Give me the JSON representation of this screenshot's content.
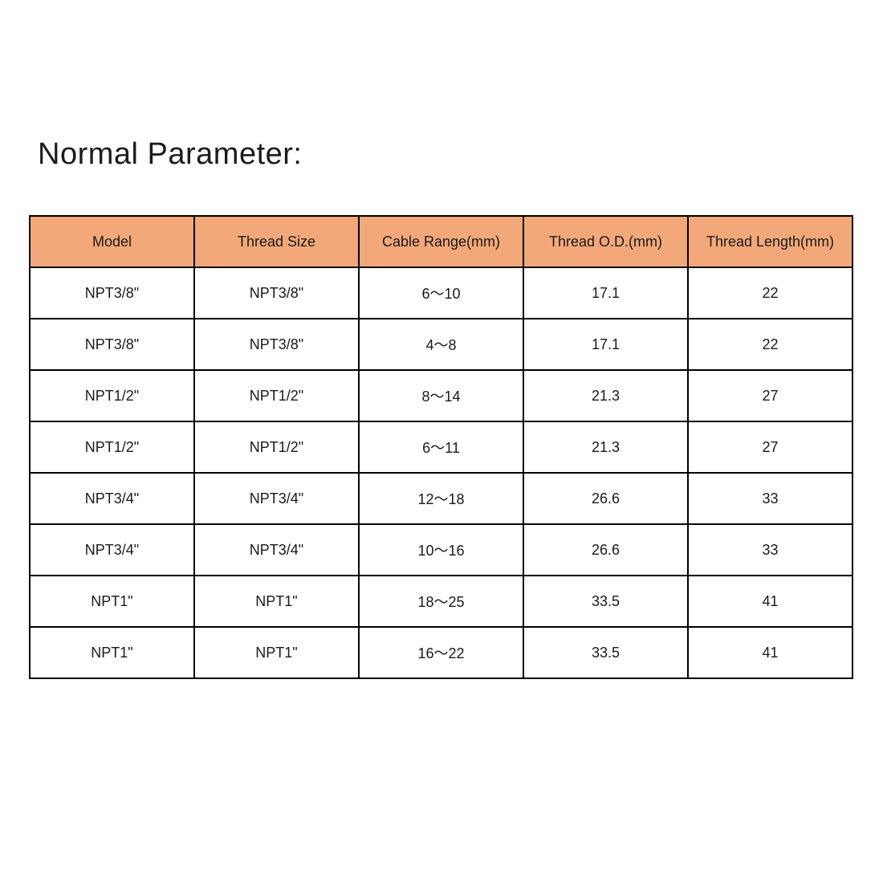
{
  "page": {
    "title": "Normal Parameter:"
  },
  "table": {
    "headers": [
      "Model",
      "Thread Size",
      "Cable Range(mm)",
      "Thread O.D.(mm)",
      "Thread Length(mm)"
    ],
    "rows": [
      [
        "NPT3/8\"",
        "NPT3/8\"",
        "6～10",
        "17.1",
        "22"
      ],
      [
        "NPT3/8\"",
        "NPT3/8\"",
        "4～8",
        "17.1",
        "22"
      ],
      [
        "NPT1/2\"",
        "NPT1/2\"",
        "8～14",
        "21.3",
        "27"
      ],
      [
        "NPT1/2\"",
        "NPT1/2\"",
        "6～11",
        "21.3",
        "27"
      ],
      [
        "NPT3/4\"",
        "NPT3/4\"",
        "12～18",
        "26.6",
        "33"
      ],
      [
        "NPT3/4\"",
        "NPT3/4\"",
        "10～16",
        "26.6",
        "33"
      ],
      [
        "NPT1\"",
        "NPT1\"",
        "18～25",
        "33.5",
        "41"
      ],
      [
        "NPT1\"",
        "NPT1\"",
        "16～22",
        "33.5",
        "41"
      ]
    ],
    "colors": {
      "header_bg": "#F2A878",
      "border": "#000000",
      "text": "#1a1a1a"
    }
  }
}
